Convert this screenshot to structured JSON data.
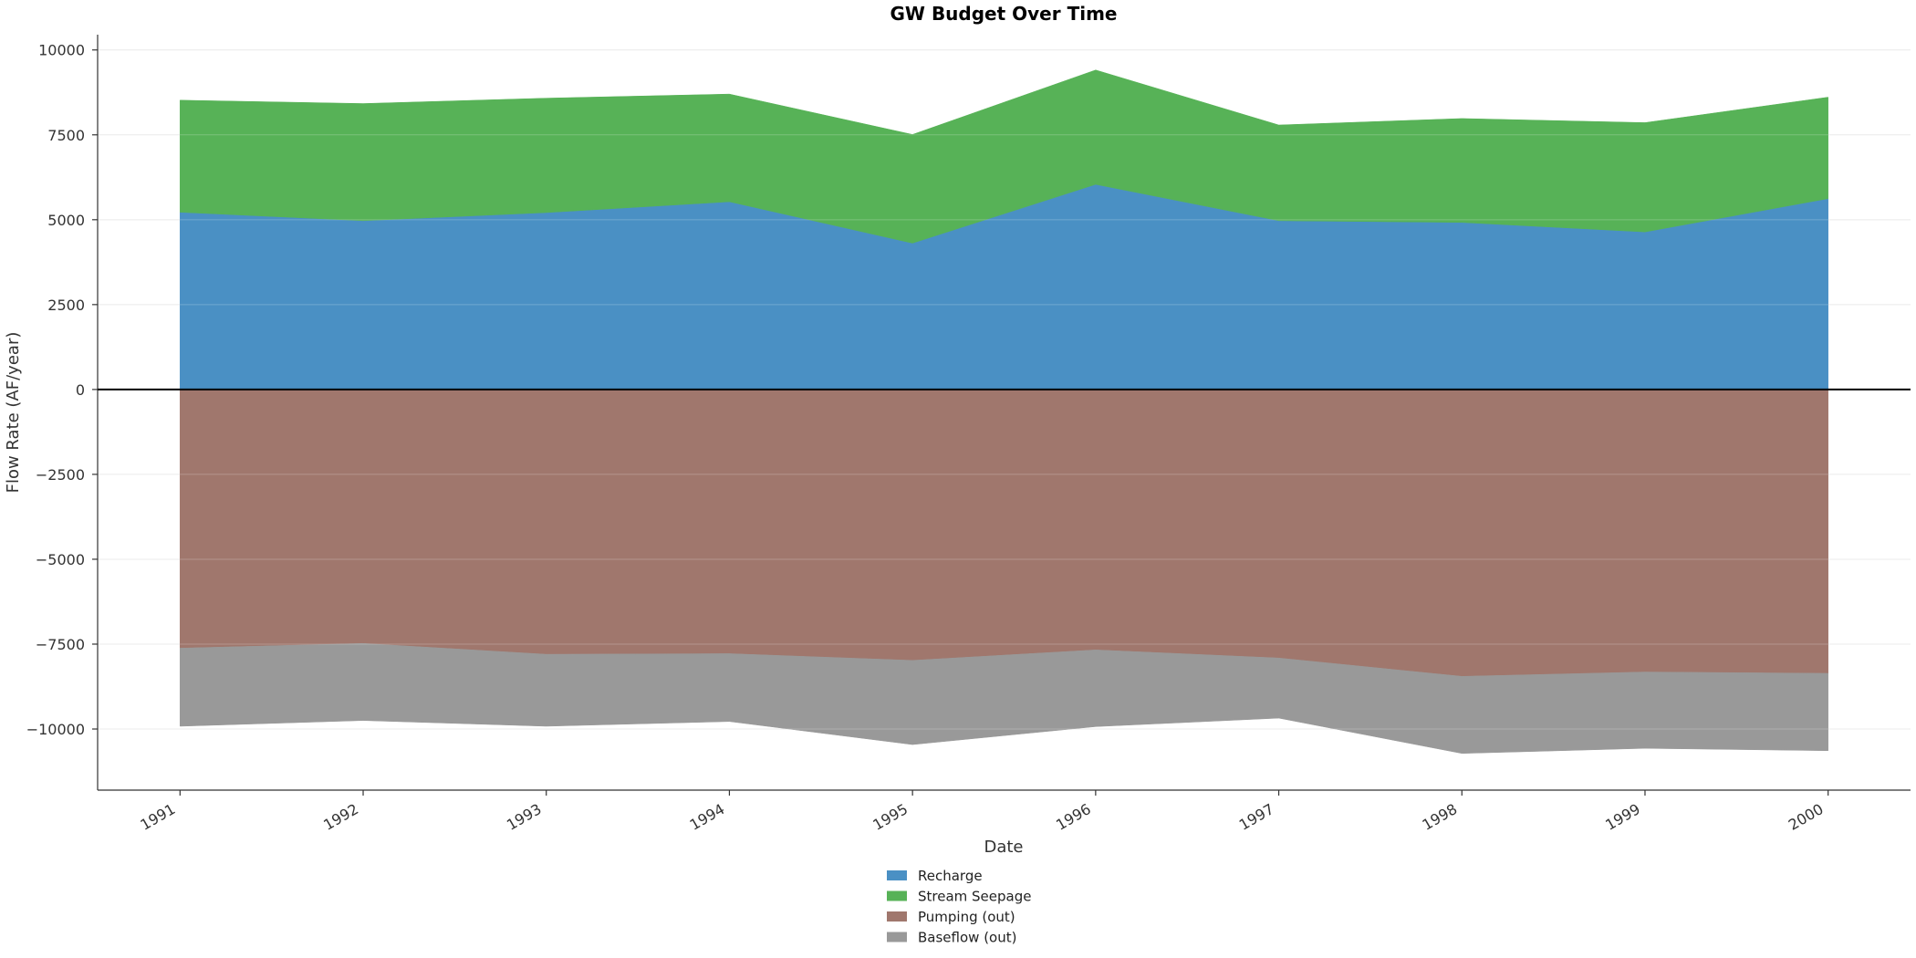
{
  "chart_data": {
    "type": "area",
    "title": "GW Budget Over Time",
    "xlabel": "Date",
    "ylabel": "Flow Rate (AF/year)",
    "ylim": [
      -11800,
      10450
    ],
    "xlim": [
      1990.55,
      2000.45
    ],
    "yticks": [
      10000,
      7500,
      5000,
      2500,
      0,
      -2500,
      -5000,
      -7500,
      -10000
    ],
    "ytick_labels": [
      "10000",
      "7500",
      "5000",
      "2500",
      "0",
      "−2500",
      "−5000",
      "−7500",
      "−10000"
    ],
    "x": [
      1991,
      1992,
      1993,
      1994,
      1995,
      1996,
      1997,
      1998,
      1999,
      2000
    ],
    "xtick_labels": [
      "1991",
      "1992",
      "1993",
      "1994",
      "1995",
      "1996",
      "1997",
      "1998",
      "1999",
      "2000"
    ],
    "grid": true,
    "legend_position": "bottom-center",
    "series": [
      {
        "name": "Recharge",
        "direction": "positive",
        "color": "#4a90c4",
        "values": [
          5220,
          4970,
          5210,
          5530,
          4310,
          6040,
          4970,
          4920,
          4640,
          5620
        ]
      },
      {
        "name": "Stream Seepage",
        "direction": "positive",
        "color": "#57b257",
        "values": [
          3300,
          3450,
          3370,
          3170,
          3200,
          3370,
          2820,
          3060,
          3220,
          2990
        ]
      },
      {
        "name": "Pumping (out)",
        "direction": "negative",
        "color": "#a0776d",
        "values": [
          -7620,
          -7480,
          -7800,
          -7780,
          -7980,
          -7670,
          -7910,
          -8450,
          -8320,
          -8360
        ]
      },
      {
        "name": "Baseflow (out)",
        "direction": "negative",
        "color": "#999999",
        "values": [
          -2300,
          -2270,
          -2120,
          -2000,
          -2480,
          -2260,
          -1770,
          -2270,
          -2250,
          -2280
        ]
      }
    ]
  }
}
